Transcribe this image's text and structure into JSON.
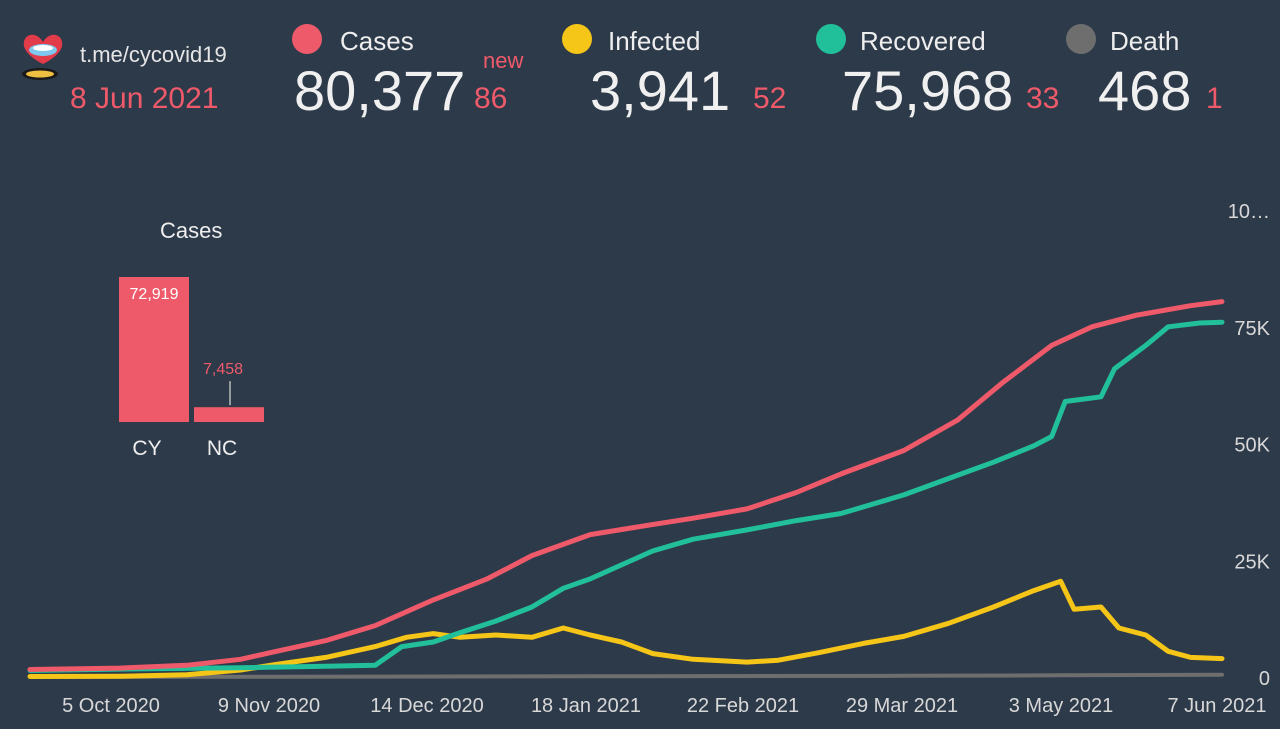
{
  "header": {
    "source": "t.me/cycovid19",
    "date": "8 Jun 2021",
    "new_word": "new",
    "stats": [
      {
        "label": "Cases",
        "value": "80,377",
        "new": "86",
        "color": "#ef5a6a"
      },
      {
        "label": "Infected",
        "value": "3,941",
        "new": "52",
        "color": "#f5c518"
      },
      {
        "label": "Recovered",
        "value": "75,968",
        "new": "33",
        "color": "#21c09a"
      },
      {
        "label": "Death",
        "value": "468",
        "new": "1",
        "color": "#6e6e6e"
      }
    ]
  },
  "mini_chart": {
    "title": "Cases",
    "bars": [
      {
        "label": "CY",
        "value": 72919,
        "value_label": "72,919"
      },
      {
        "label": "NC",
        "value": 7458,
        "value_label": "7,458"
      }
    ],
    "color": "#ef5a6a"
  },
  "chart_data": {
    "type": "line",
    "x_ticks": [
      "5 Oct 2020",
      "9 Nov 2020",
      "14 Dec 2020",
      "18 Jan 2021",
      "22 Feb 2021",
      "29 Mar 2021",
      "3 May 2021",
      "7 Jun 2021"
    ],
    "y_ticks": [
      "0",
      "25K",
      "50K",
      "75K",
      "10…"
    ],
    "y_tick_values": [
      0,
      25000,
      50000,
      75000,
      100000
    ],
    "ylim": [
      0,
      100000
    ],
    "xlim": [
      "2020-09-15",
      "2021-06-08"
    ],
    "series": [
      {
        "name": "Cases",
        "color": "#ef5a6a",
        "points": [
          [
            "2020-09-15",
            1600
          ],
          [
            "2020-10-05",
            1900
          ],
          [
            "2020-10-20",
            2500
          ],
          [
            "2020-11-01",
            3800
          ],
          [
            "2020-11-09",
            5500
          ],
          [
            "2020-11-20",
            7800
          ],
          [
            "2020-12-01",
            11000
          ],
          [
            "2020-12-14",
            16500
          ],
          [
            "2020-12-26",
            21000
          ],
          [
            "2021-01-05",
            26000
          ],
          [
            "2021-01-18",
            30500
          ],
          [
            "2021-01-31",
            32500
          ],
          [
            "2021-02-10",
            34000
          ],
          [
            "2021-02-22",
            36000
          ],
          [
            "2021-03-05",
            39500
          ],
          [
            "2021-03-15",
            43500
          ],
          [
            "2021-03-29",
            48500
          ],
          [
            "2021-04-10",
            55000
          ],
          [
            "2021-04-20",
            63000
          ],
          [
            "2021-05-01",
            71000
          ],
          [
            "2021-05-10",
            75000
          ],
          [
            "2021-05-20",
            77500
          ],
          [
            "2021-06-01",
            79500
          ],
          [
            "2021-06-08",
            80377
          ]
        ]
      },
      {
        "name": "Infected",
        "color": "#f5c518",
        "points": [
          [
            "2020-09-15",
            100
          ],
          [
            "2020-10-05",
            150
          ],
          [
            "2020-10-20",
            500
          ],
          [
            "2020-11-01",
            1500
          ],
          [
            "2020-11-09",
            2700
          ],
          [
            "2020-11-20",
            4200
          ],
          [
            "2020-12-01",
            6500
          ],
          [
            "2020-12-08",
            8500
          ],
          [
            "2020-12-14",
            9300
          ],
          [
            "2020-12-20",
            8500
          ],
          [
            "2020-12-28",
            9000
          ],
          [
            "2021-01-05",
            8500
          ],
          [
            "2021-01-12",
            10500
          ],
          [
            "2021-01-18",
            9000
          ],
          [
            "2021-01-25",
            7500
          ],
          [
            "2021-02-01",
            5000
          ],
          [
            "2021-02-10",
            3800
          ],
          [
            "2021-02-22",
            3200
          ],
          [
            "2021-03-01",
            3600
          ],
          [
            "2021-03-10",
            5200
          ],
          [
            "2021-03-20",
            7200
          ],
          [
            "2021-03-29",
            8700
          ],
          [
            "2021-04-08",
            11500
          ],
          [
            "2021-04-18",
            15000
          ],
          [
            "2021-04-27",
            18500
          ],
          [
            "2021-05-03",
            20500
          ],
          [
            "2021-05-06",
            14500
          ],
          [
            "2021-05-12",
            15000
          ],
          [
            "2021-05-16",
            10500
          ],
          [
            "2021-05-22",
            9000
          ],
          [
            "2021-05-27",
            5500
          ],
          [
            "2021-06-01",
            4200
          ],
          [
            "2021-06-08",
            3941
          ]
        ]
      },
      {
        "name": "Recovered",
        "color": "#21c09a",
        "points": [
          [
            "2020-09-15",
            1400
          ],
          [
            "2020-10-05",
            1700
          ],
          [
            "2020-11-01",
            2000
          ],
          [
            "2020-11-20",
            2300
          ],
          [
            "2020-12-01",
            2500
          ],
          [
            "2020-12-07",
            6500
          ],
          [
            "2020-12-14",
            7500
          ],
          [
            "2020-12-20",
            9500
          ],
          [
            "2020-12-28",
            12000
          ],
          [
            "2021-01-05",
            15000
          ],
          [
            "2021-01-12",
            19000
          ],
          [
            "2021-01-18",
            21000
          ],
          [
            "2021-01-25",
            24000
          ],
          [
            "2021-02-01",
            27000
          ],
          [
            "2021-02-10",
            29500
          ],
          [
            "2021-02-22",
            31500
          ],
          [
            "2021-03-05",
            33500
          ],
          [
            "2021-03-15",
            35000
          ],
          [
            "2021-03-29",
            39000
          ],
          [
            "2021-04-08",
            42500
          ],
          [
            "2021-04-18",
            46000
          ],
          [
            "2021-04-27",
            49500
          ],
          [
            "2021-05-01",
            51500
          ],
          [
            "2021-05-04",
            59000
          ],
          [
            "2021-05-12",
            60000
          ],
          [
            "2021-05-15",
            66000
          ],
          [
            "2021-05-22",
            71000
          ],
          [
            "2021-05-27",
            75000
          ],
          [
            "2021-06-03",
            75800
          ],
          [
            "2021-06-08",
            75968
          ]
        ]
      },
      {
        "name": "Death",
        "color": "#6e6e6e",
        "points": [
          [
            "2020-09-15",
            20
          ],
          [
            "2020-11-09",
            40
          ],
          [
            "2021-01-18",
            150
          ],
          [
            "2021-03-29",
            260
          ],
          [
            "2021-05-03",
            370
          ],
          [
            "2021-06-08",
            468
          ]
        ]
      }
    ]
  }
}
